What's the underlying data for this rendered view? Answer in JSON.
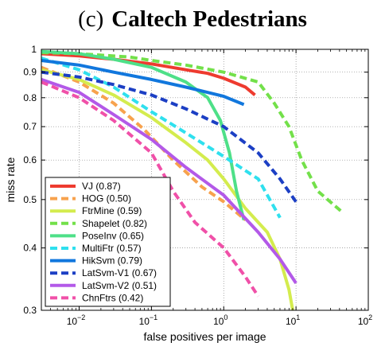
{
  "chart_data": {
    "type": "line",
    "title_panel": "(c)",
    "title": "Caltech Pedestrians",
    "xlabel": "false positives per image",
    "ylabel": "miss rate",
    "x_scale": "log",
    "y_scale": "log",
    "xlim": [
      0.003,
      100
    ],
    "ylim": [
      0.3,
      1
    ],
    "x_ticks": [
      {
        "value": 0.01,
        "base": "10",
        "exp": "−2"
      },
      {
        "value": 0.1,
        "base": "10",
        "exp": "−1"
      },
      {
        "value": 1,
        "base": "10",
        "exp": "0"
      },
      {
        "value": 10,
        "base": "10",
        "exp": "1"
      },
      {
        "value": 100,
        "base": "10",
        "exp": "2"
      }
    ],
    "y_ticks": [
      {
        "value": 0.3,
        "label": "0.3"
      },
      {
        "value": 0.4,
        "label": "0.4"
      },
      {
        "value": 0.5,
        "label": "0.5"
      },
      {
        "value": 0.6,
        "label": "0.6"
      },
      {
        "value": 0.7,
        "label": "0.7"
      },
      {
        "value": 0.8,
        "label": "0.8"
      },
      {
        "value": 0.9,
        "label": "0.9"
      },
      {
        "value": 1,
        "label": "1"
      }
    ],
    "grid": true,
    "legend_position": "bottom-left",
    "series": [
      {
        "name": "VJ",
        "score": "(0.87)",
        "color": "#ee3b2f",
        "dash": "solid",
        "points": [
          [
            0.003,
            0.98
          ],
          [
            0.01,
            0.97
          ],
          [
            0.03,
            0.955
          ],
          [
            0.1,
            0.935
          ],
          [
            0.3,
            0.91
          ],
          [
            0.6,
            0.895
          ],
          [
            1,
            0.875
          ],
          [
            2,
            0.84
          ],
          [
            2.7,
            0.81
          ]
        ]
      },
      {
        "name": "HOG",
        "score": "(0.50)",
        "color": "#f7a24d",
        "dash": "dashed",
        "points": [
          [
            0.003,
            0.92
          ],
          [
            0.01,
            0.86
          ],
          [
            0.03,
            0.78
          ],
          [
            0.08,
            0.69
          ],
          [
            0.2,
            0.6
          ],
          [
            0.5,
            0.53
          ],
          [
            1,
            0.495
          ],
          [
            2,
            0.455
          ]
        ]
      },
      {
        "name": "FtrMine",
        "score": "(0.59)",
        "color": "#d4ec4e",
        "dash": "solid",
        "points": [
          [
            0.003,
            0.91
          ],
          [
            0.01,
            0.87
          ],
          [
            0.03,
            0.81
          ],
          [
            0.1,
            0.73
          ],
          [
            0.3,
            0.65
          ],
          [
            0.6,
            0.6
          ],
          [
            1,
            0.55
          ],
          [
            2,
            0.48
          ],
          [
            4,
            0.43
          ],
          [
            6,
            0.38
          ],
          [
            8,
            0.33
          ],
          [
            9,
            0.3
          ]
        ]
      },
      {
        "name": "Shapelet",
        "score": "(0.82)",
        "color": "#73e04a",
        "dash": "dashed",
        "points": [
          [
            0.003,
            0.985
          ],
          [
            0.01,
            0.98
          ],
          [
            0.05,
            0.965
          ],
          [
            0.1,
            0.95
          ],
          [
            0.3,
            0.93
          ],
          [
            1,
            0.9
          ],
          [
            3,
            0.86
          ],
          [
            5,
            0.78
          ],
          [
            8,
            0.7
          ],
          [
            12,
            0.6
          ],
          [
            20,
            0.52
          ],
          [
            45,
            0.47
          ]
        ]
      },
      {
        "name": "PoseInv",
        "score": "(0.65)",
        "color": "#4ee088",
        "dash": "solid",
        "points": [
          [
            0.003,
            0.99
          ],
          [
            0.01,
            0.98
          ],
          [
            0.03,
            0.955
          ],
          [
            0.1,
            0.92
          ],
          [
            0.3,
            0.86
          ],
          [
            0.6,
            0.8
          ],
          [
            0.9,
            0.72
          ],
          [
            1.2,
            0.62
          ],
          [
            1.5,
            0.52
          ],
          [
            1.9,
            0.455
          ]
        ]
      },
      {
        "name": "MultiFtr",
        "score": "(0.57)",
        "color": "#2fe0ee",
        "dash": "dashed",
        "points": [
          [
            0.003,
            0.96
          ],
          [
            0.01,
            0.91
          ],
          [
            0.03,
            0.84
          ],
          [
            0.1,
            0.75
          ],
          [
            0.3,
            0.68
          ],
          [
            1,
            0.61
          ],
          [
            3,
            0.55
          ],
          [
            6,
            0.46
          ]
        ]
      },
      {
        "name": "HikSvm",
        "score": "(0.79)",
        "color": "#1177dd",
        "dash": "solid",
        "points": [
          [
            0.003,
            0.95
          ],
          [
            0.01,
            0.93
          ],
          [
            0.03,
            0.9
          ],
          [
            0.1,
            0.87
          ],
          [
            0.3,
            0.84
          ],
          [
            1,
            0.805
          ],
          [
            1.9,
            0.775
          ]
        ]
      },
      {
        "name": "LatSvm-V1",
        "score": "(0.67)",
        "color": "#1c3fc4",
        "dash": "dashed",
        "points": [
          [
            0.003,
            0.9
          ],
          [
            0.01,
            0.88
          ],
          [
            0.03,
            0.85
          ],
          [
            0.1,
            0.81
          ],
          [
            0.3,
            0.76
          ],
          [
            1,
            0.7
          ],
          [
            3,
            0.62
          ],
          [
            6,
            0.55
          ],
          [
            10,
            0.495
          ]
        ]
      },
      {
        "name": "LatSvm-V2",
        "score": "(0.51)",
        "color": "#b359e8",
        "dash": "solid",
        "points": [
          [
            0.003,
            0.87
          ],
          [
            0.01,
            0.82
          ],
          [
            0.03,
            0.74
          ],
          [
            0.1,
            0.66
          ],
          [
            0.3,
            0.58
          ],
          [
            1,
            0.51
          ],
          [
            3,
            0.43
          ],
          [
            6,
            0.38
          ],
          [
            10,
            0.34
          ]
        ]
      },
      {
        "name": "ChnFtrs",
        "score": "(0.42)",
        "color": "#f050a8",
        "dash": "dashed",
        "points": [
          [
            0.003,
            0.86
          ],
          [
            0.01,
            0.8
          ],
          [
            0.03,
            0.72
          ],
          [
            0.1,
            0.62
          ],
          [
            0.2,
            0.52
          ],
          [
            0.4,
            0.45
          ],
          [
            1,
            0.4
          ],
          [
            2,
            0.35
          ],
          [
            3,
            0.32
          ]
        ]
      }
    ]
  }
}
